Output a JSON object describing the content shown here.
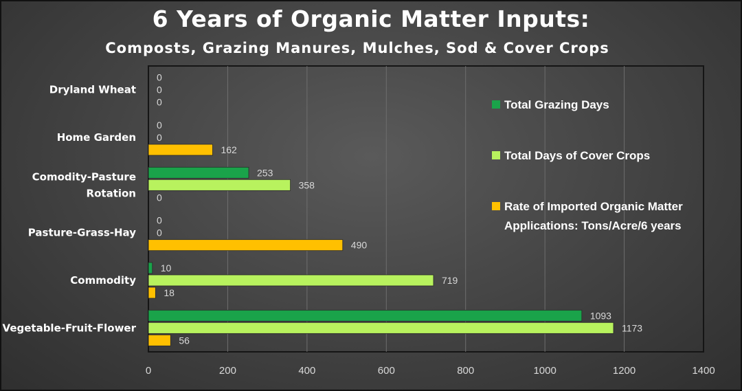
{
  "chart_data": {
    "type": "bar",
    "orientation": "horizontal",
    "title": "6 Years of Organic Matter Inputs:",
    "subtitle": "Composts, Grazing Manures, Mulches, Sod & Cover Crops",
    "categories": [
      "Dryland Wheat",
      "Home Garden",
      "Comodity-Pasture Rotation",
      "Pasture-Grass-Hay",
      "Commodity",
      "Vegetable-Fruit-Flower"
    ],
    "category_lines": [
      [
        "Dryland Wheat"
      ],
      [
        "Home Garden"
      ],
      [
        "Comodity-Pasture",
        "Rotation"
      ],
      [
        "Pasture-Grass-Hay"
      ],
      [
        "Commodity"
      ],
      [
        "Vegetable-Fruit-Flower"
      ]
    ],
    "series": [
      {
        "name": "Total Grazing Days",
        "color": "#1aa34a",
        "values": [
          0,
          0,
          253,
          0,
          10,
          1093
        ]
      },
      {
        "name": "Total Days of Cover Crops",
        "color": "#b8f25e",
        "values": [
          0,
          0,
          358,
          0,
          719,
          1173
        ]
      },
      {
        "name": "Rate of Imported Organic Matter Applications: Tons/Acre/6 years",
        "legend_lines": [
          "Rate of Imported Organic Matter",
          "Applications: Tons/Acre/6 years"
        ],
        "color": "#ffc000",
        "values": [
          0,
          162,
          0,
          490,
          18,
          56
        ]
      }
    ],
    "xlim": [
      0,
      1400
    ],
    "xticks": [
      0,
      200,
      400,
      600,
      800,
      1000,
      1200,
      1400
    ],
    "grid": true,
    "legend_position": "right"
  }
}
